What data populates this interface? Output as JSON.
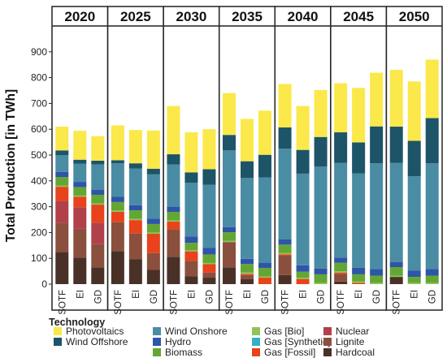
{
  "chart_data": {
    "type": "bar",
    "stacked": true,
    "ylabel": "Total Production [in TWh]",
    "xlabel": "",
    "ylim": [
      0,
      930
    ],
    "yticks": [
      0,
      100,
      200,
      300,
      400,
      500,
      600,
      700,
      800,
      900
    ],
    "grid": false,
    "groups": [
      "2020",
      "2025",
      "2030",
      "2035",
      "2040",
      "2045",
      "2050"
    ],
    "scenarios": [
      "SOTF",
      "EI",
      "GD"
    ],
    "legend_title": "Technology",
    "legend_position": "bottom",
    "technologies": [
      {
        "key": "hardcoal",
        "name": "Hardcoal",
        "color": "#4a3128"
      },
      {
        "key": "lignite",
        "name": "Lignite",
        "color": "#8b4f3e"
      },
      {
        "key": "nuclear",
        "name": "Nuclear",
        "color": "#b2404a"
      },
      {
        "key": "gas_fossil",
        "name": "Gas [Fossil]",
        "color": "#e8431c"
      },
      {
        "key": "gas_synthetic",
        "name": "Gas [Synthetic]",
        "color": "#32b2c8"
      },
      {
        "key": "gas_bio",
        "name": "Gas [Bio]",
        "color": "#8ec458"
      },
      {
        "key": "biomass",
        "name": "Biomass",
        "color": "#64a634"
      },
      {
        "key": "hydro",
        "name": "Hydro",
        "color": "#2e55a8"
      },
      {
        "key": "wind_onshore",
        "name": "Wind Onshore",
        "color": "#4a8ca4"
      },
      {
        "key": "wind_offshore",
        "name": "Wind Offshore",
        "color": "#1d5467"
      },
      {
        "key": "photovoltaics",
        "name": "Photovoltaics",
        "color": "#fbe84a"
      }
    ],
    "bars": [
      {
        "group": "2020",
        "scenario": "SOTF",
        "values": [
          125,
          112,
          85,
          55,
          0,
          5,
          33,
          20,
          65,
          18,
          92
        ]
      },
      {
        "group": "2020",
        "scenario": "EI",
        "values": [
          103,
          112,
          83,
          40,
          0,
          5,
          33,
          20,
          70,
          16,
          112
        ]
      },
      {
        "group": "2020",
        "scenario": "GD",
        "values": [
          65,
          90,
          83,
          70,
          0,
          5,
          33,
          20,
          98,
          14,
          95
        ]
      },
      {
        "group": "2025",
        "scenario": "SOTF",
        "values": [
          128,
          112,
          0,
          40,
          0,
          5,
          33,
          20,
          130,
          12,
          135
        ]
      },
      {
        "group": "2025",
        "scenario": "EI",
        "values": [
          96,
          100,
          0,
          52,
          0,
          5,
          33,
          20,
          142,
          20,
          129
        ]
      },
      {
        "group": "2025",
        "scenario": "GD",
        "values": [
          55,
          65,
          0,
          75,
          0,
          5,
          33,
          20,
          172,
          22,
          148
        ]
      },
      {
        "group": "2030",
        "scenario": "SOTF",
        "values": [
          106,
          106,
          0,
          30,
          0,
          5,
          33,
          20,
          163,
          40,
          187
        ]
      },
      {
        "group": "2030",
        "scenario": "EI",
        "values": [
          30,
          60,
          0,
          37,
          0,
          5,
          28,
          25,
          208,
          40,
          155
        ]
      },
      {
        "group": "2030",
        "scenario": "GD",
        "values": [
          25,
          20,
          0,
          32,
          0,
          5,
          33,
          25,
          245,
          60,
          155
        ]
      },
      {
        "group": "2035",
        "scenario": "SOTF",
        "values": [
          65,
          98,
          0,
          0,
          0,
          5,
          33,
          20,
          297,
          60,
          162
        ]
      },
      {
        "group": "2035",
        "scenario": "EI",
        "values": [
          20,
          15,
          0,
          5,
          0,
          5,
          33,
          20,
          313,
          65,
          164
        ]
      },
      {
        "group": "2035",
        "scenario": "GD",
        "values": [
          0,
          0,
          0,
          25,
          0,
          5,
          33,
          20,
          330,
          88,
          171
        ]
      },
      {
        "group": "2040",
        "scenario": "SOTF",
        "values": [
          35,
          75,
          0,
          5,
          0,
          5,
          33,
          20,
          352,
          82,
          168
        ]
      },
      {
        "group": "2040",
        "scenario": "EI",
        "values": [
          0,
          0,
          0,
          20,
          0,
          5,
          23,
          25,
          355,
          92,
          170
        ]
      },
      {
        "group": "2040",
        "scenario": "GD",
        "values": [
          0,
          0,
          0,
          0,
          0,
          5,
          33,
          22,
          395,
          115,
          182
        ]
      },
      {
        "group": "2045",
        "scenario": "SOTF",
        "values": [
          10,
          30,
          0,
          5,
          0,
          5,
          33,
          20,
          367,
          118,
          190
        ]
      },
      {
        "group": "2045",
        "scenario": "EI",
        "values": [
          0,
          0,
          0,
          5,
          0,
          5,
          28,
          25,
          366,
          120,
          211
        ]
      },
      {
        "group": "2045",
        "scenario": "GD",
        "values": [
          0,
          0,
          0,
          0,
          0,
          5,
          28,
          25,
          410,
          143,
          208
        ]
      },
      {
        "group": "2050",
        "scenario": "SOTF",
        "values": [
          28,
          0,
          0,
          0,
          0,
          5,
          33,
          20,
          384,
          140,
          220
        ]
      },
      {
        "group": "2050",
        "scenario": "EI",
        "values": [
          0,
          0,
          0,
          0,
          0,
          5,
          23,
          25,
          365,
          137,
          230
        ]
      },
      {
        "group": "2050",
        "scenario": "GD",
        "values": [
          0,
          0,
          0,
          0,
          0,
          5,
          28,
          25,
          410,
          175,
          227
        ]
      }
    ]
  }
}
